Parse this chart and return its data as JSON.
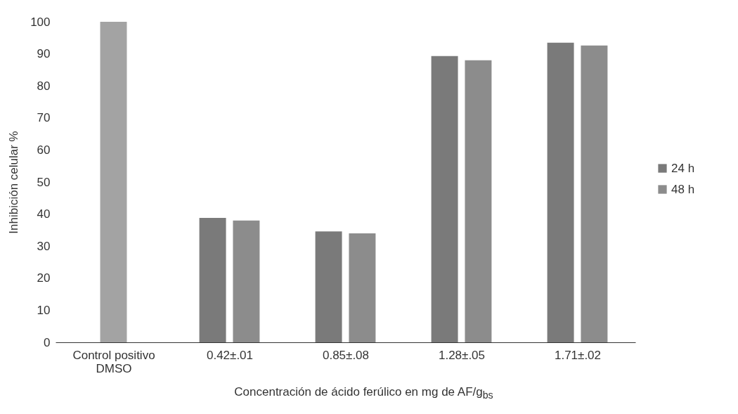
{
  "chart_data": {
    "type": "bar",
    "xlabel": "Concentración de ácido ferúlico en mg de AF/g$_{bs}$",
    "ylabel": "Inhibición celular %",
    "categories": [
      "Control positivo DMSO",
      "0.42±.01",
      "0.85±.08",
      "1.28±.05",
      "1.71±.02"
    ],
    "series": [
      {
        "color": "#a3a3a3",
        "values": [
          100,
          null,
          null,
          null,
          null
        ]
      },
      {
        "name": "24 h",
        "color": "#7a7a7a",
        "values": [
          null,
          38.8,
          34.6,
          89.3,
          93.5
        ]
      },
      {
        "name": "48 h",
        "color": "#8c8c8c",
        "values": [
          null,
          38,
          34,
          88,
          92.6
        ]
      }
    ],
    "ylim": [
      0,
      100
    ],
    "yticks": [
      0,
      10,
      20,
      30,
      40,
      50,
      60,
      70,
      80,
      90,
      100
    ],
    "grid": false,
    "legend": "right"
  }
}
